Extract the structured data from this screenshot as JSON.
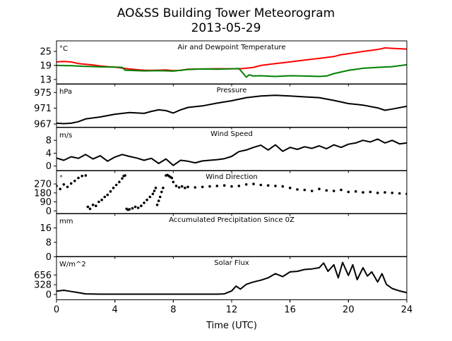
{
  "figure": {
    "title": "AO&SS Building Tower Meteorogram",
    "subtitle": "2013-05-29",
    "xlabel": "Time (UTC)",
    "x_ticks": [
      "0",
      "4",
      "8",
      "12",
      "16",
      "20",
      "24"
    ]
  },
  "chart_data": [
    {
      "type": "line",
      "title": "Air and Dewpoint Temperature",
      "unit_label": "°C",
      "xlim": [
        0,
        24
      ],
      "ylim": [
        11,
        29.5
      ],
      "y_ticks": [
        13,
        19,
        25
      ],
      "series": [
        {
          "color": "#ff0000",
          "x": [
            0,
            0.5,
            1,
            1.5,
            2,
            2.5,
            3,
            3.5,
            4,
            4.5,
            5,
            5.5,
            6,
            6.5,
            7,
            7.5,
            8,
            8.5,
            9,
            10,
            11,
            12,
            12.5,
            13,
            13.5,
            14,
            15,
            16,
            17,
            18,
            19,
            19.5,
            20,
            21,
            22,
            22.5,
            23,
            24
          ],
          "y": [
            20.5,
            20.7,
            20.5,
            19.8,
            19.5,
            19.2,
            18.8,
            18.5,
            18.3,
            17.9,
            17.5,
            17.2,
            17.0,
            16.9,
            17.0,
            17.1,
            16.8,
            16.9,
            17.4,
            17.5,
            17.6,
            17.6,
            17.6,
            17.8,
            18.2,
            19.0,
            19.8,
            20.5,
            21.3,
            22.0,
            22.8,
            23.6,
            24.0,
            25.0,
            25.8,
            26.5,
            26.3,
            26.0
          ]
        },
        {
          "color": "#008000",
          "x": [
            0,
            1,
            2,
            3,
            4,
            4.5,
            4.7,
            5,
            6,
            7,
            8,
            9,
            10,
            11,
            12,
            12.5,
            12.8,
            13,
            13.2,
            13.5,
            14,
            15,
            16,
            17,
            18,
            18.5,
            19,
            20,
            21,
            22,
            23,
            24
          ],
          "y": [
            19.0,
            18.9,
            18.6,
            18.4,
            18.3,
            18.2,
            17.0,
            16.9,
            16.7,
            16.8,
            16.6,
            17.3,
            17.5,
            17.4,
            17.6,
            17.7,
            15.5,
            14.0,
            15.0,
            14.5,
            14.6,
            14.3,
            14.6,
            14.5,
            14.3,
            14.5,
            15.5,
            16.9,
            17.8,
            18.2,
            18.5,
            19.3
          ]
        }
      ]
    },
    {
      "type": "line",
      "title": "Pressure",
      "unit_label": "hPa",
      "xlim": [
        0,
        24
      ],
      "ylim": [
        966.2,
        977.2
      ],
      "y_ticks": [
        967,
        971,
        975
      ],
      "series": [
        {
          "color": "#000000",
          "x": [
            0,
            0.5,
            1,
            1.5,
            2,
            3,
            4,
            5,
            6,
            6.5,
            7,
            7.5,
            8,
            8.5,
            9,
            10,
            11,
            12,
            13,
            14,
            15,
            16,
            17,
            18,
            19,
            20,
            21,
            22,
            22.5,
            23,
            24
          ],
          "y": [
            967.2,
            967.1,
            967.2,
            967.6,
            968.3,
            968.8,
            969.5,
            969.9,
            969.7,
            970.2,
            970.6,
            970.4,
            969.8,
            970.6,
            971.2,
            971.6,
            972.3,
            972.9,
            973.7,
            974.1,
            974.3,
            974.1,
            973.9,
            973.7,
            973.0,
            972.2,
            971.8,
            971.1,
            970.5,
            970.8,
            971.5
          ]
        }
      ]
    },
    {
      "type": "line",
      "title": "Wind Speed",
      "unit_label": "m/s",
      "xlim": [
        0,
        24
      ],
      "ylim": [
        -1.5,
        12
      ],
      "y_ticks": [
        0,
        4,
        8
      ],
      "series": [
        {
          "color": "#000000",
          "x": [
            0,
            0.5,
            1,
            1.5,
            2,
            2.5,
            3,
            3.5,
            4,
            4.5,
            5,
            5.5,
            6,
            6.5,
            7,
            7.5,
            8,
            8.5,
            9,
            9.5,
            10,
            10.5,
            11,
            11.5,
            12,
            12.5,
            13,
            13.5,
            14,
            14.5,
            15,
            15.5,
            16,
            16.5,
            17,
            17.5,
            18,
            18.5,
            19,
            19.5,
            20,
            20.5,
            21,
            21.5,
            22,
            22.5,
            23,
            23.5,
            24
          ],
          "y": [
            2.5,
            1.8,
            2.9,
            2.4,
            3.6,
            2.2,
            3.2,
            1.5,
            2.8,
            3.6,
            3.0,
            2.5,
            1.8,
            2.4,
            0.8,
            2.2,
            0.2,
            1.8,
            1.5,
            1.0,
            1.6,
            1.8,
            2.0,
            2.3,
            3.0,
            4.5,
            5.0,
            5.8,
            6.5,
            5.0,
            6.6,
            4.6,
            5.8,
            5.2,
            6.0,
            5.5,
            6.3,
            5.4,
            6.6,
            5.8,
            6.8,
            7.2,
            8.0,
            7.5,
            8.4,
            7.2,
            8.0,
            6.9,
            7.2
          ]
        }
      ]
    },
    {
      "type": "scatter",
      "title": "Wind Direction",
      "unit_label": "°",
      "xlim": [
        0,
        24
      ],
      "ylim": [
        -30,
        405
      ],
      "y_ticks": [
        0,
        90,
        180,
        270
      ],
      "series": [
        {
          "color": "#000000",
          "x": [
            0,
            0.25,
            0.5,
            0.75,
            1,
            1.25,
            1.5,
            1.75,
            2,
            2.15,
            2.3,
            2.5,
            2.7,
            2.9,
            3.1,
            3.3,
            3.5,
            3.7,
            3.9,
            4.1,
            4.3,
            4.5,
            4.6,
            4.7,
            4.8,
            4.9,
            5.0,
            5.2,
            5.4,
            5.6,
            5.8,
            6.0,
            6.2,
            6.4,
            6.6,
            6.7,
            6.8,
            6.9,
            7.0,
            7.1,
            7.2,
            7.3,
            7.5,
            7.6,
            7.7,
            7.8,
            7.9,
            8.0,
            8.2,
            8.4,
            8.6,
            8.8,
            9.0,
            9.5,
            10,
            10.5,
            11,
            11.5,
            12,
            12.5,
            13,
            13.5,
            14,
            14.5,
            15,
            15.5,
            16,
            16.5,
            17,
            17.5,
            18,
            18.5,
            19,
            19.5,
            20,
            20.5,
            21,
            21.5,
            22,
            22.5,
            23,
            23.5,
            24
          ],
          "y": [
            250,
            220,
            265,
            240,
            275,
            300,
            330,
            350,
            355,
            40,
            20,
            60,
            50,
            90,
            110,
            140,
            160,
            195,
            230,
            260,
            290,
            325,
            350,
            355,
            20,
            10,
            15,
            25,
            40,
            30,
            50,
            80,
            110,
            140,
            170,
            200,
            230,
            60,
            100,
            140,
            190,
            230,
            355,
            360,
            350,
            340,
            330,
            290,
            250,
            235,
            245,
            230,
            240,
            235,
            240,
            245,
            250,
            255,
            245,
            250,
            265,
            270,
            260,
            255,
            250,
            245,
            230,
            215,
            210,
            200,
            220,
            205,
            200,
            210,
            190,
            195,
            185,
            190,
            180,
            185,
            180,
            175,
            170
          ]
        }
      ]
    },
    {
      "type": "line",
      "title": "Accumulated Precipitation Since 0Z",
      "unit_label": "mm",
      "xlim": [
        0,
        24
      ],
      "ylim": [
        0,
        24
      ],
      "y_ticks": [
        0,
        8,
        16
      ],
      "series": [
        {
          "color": "#000000",
          "x": [
            0,
            24
          ],
          "y": [
            0,
            0
          ]
        }
      ]
    },
    {
      "type": "line",
      "title": "Solar Flux",
      "unit_label": "W/m^2",
      "xlim": [
        0,
        24
      ],
      "ylim": [
        -180,
        1280
      ],
      "y_ticks": [
        0,
        328,
        656
      ],
      "series": [
        {
          "color": "#000000",
          "x": [
            0,
            0.5,
            1,
            1.5,
            2,
            3,
            4,
            5,
            6,
            7,
            8,
            9,
            10,
            11,
            11.5,
            12,
            12.3,
            12.6,
            13,
            13.5,
            14,
            14.5,
            15,
            15.5,
            16,
            16.5,
            17,
            17.5,
            18,
            18.3,
            18.6,
            19,
            19.3,
            19.6,
            20,
            20.3,
            20.6,
            21,
            21.3,
            21.6,
            22,
            22.3,
            22.6,
            23,
            23.5,
            24
          ],
          "y": [
            110,
            140,
            100,
            60,
            20,
            10,
            10,
            10,
            10,
            10,
            10,
            10,
            10,
            10,
            20,
            120,
            280,
            180,
            340,
            420,
            480,
            560,
            700,
            600,
            760,
            780,
            840,
            860,
            900,
            1060,
            780,
            1000,
            560,
            1080,
            640,
            1000,
            500,
            900,
            620,
            760,
            420,
            700,
            340,
            200,
            120,
            60
          ]
        }
      ]
    }
  ]
}
